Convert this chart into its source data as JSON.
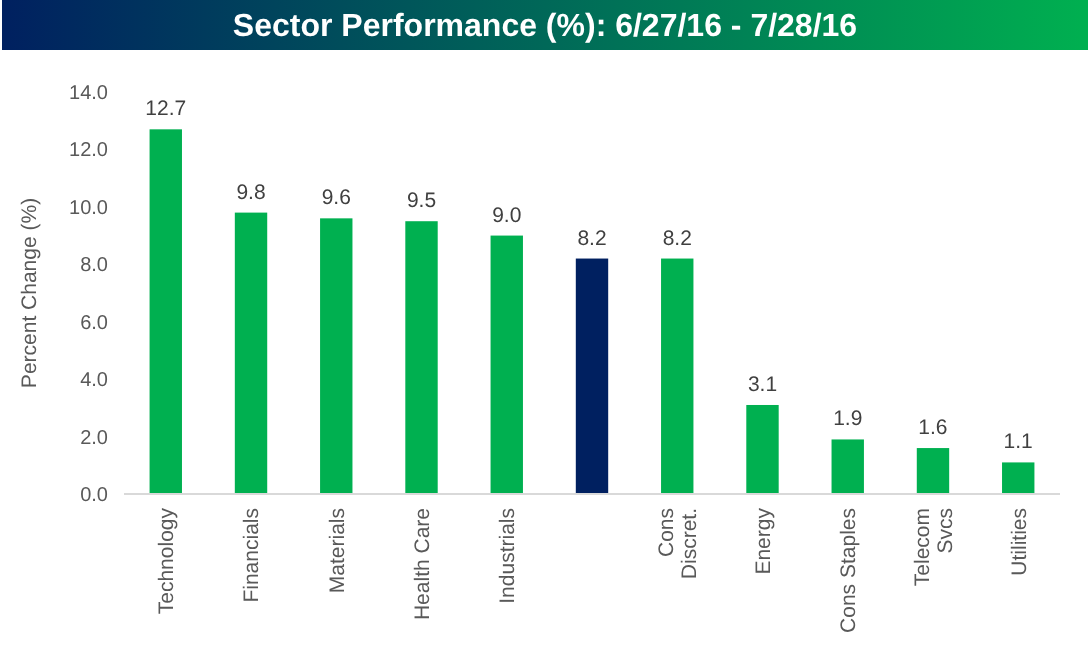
{
  "chart_data": {
    "type": "bar",
    "title": "Sector Performance (%): 6/27/16 - 7/28/16",
    "ylabel": "Percent Change (%)",
    "categories": [
      "Technology",
      "Financials",
      "Materials",
      "Health Care",
      "Industrials",
      null,
      "Cons\nDiscret.",
      "Energy",
      "Cons Staples",
      "Telecom\nSvcs",
      "Utilities"
    ],
    "values": [
      12.7,
      9.8,
      9.6,
      9.5,
      9.0,
      8.2,
      8.2,
      3.1,
      1.9,
      1.6,
      1.1
    ],
    "colors": [
      "#00b050",
      "#00b050",
      "#00b050",
      "#00b050",
      "#00b050",
      "#002060",
      "#00b050",
      "#00b050",
      "#00b050",
      "#00b050",
      "#00b050"
    ],
    "value_labels": [
      "12.7",
      "9.8",
      "9.6",
      "9.5",
      "9.0",
      "8.2",
      "8.2",
      "3.1",
      "1.9",
      "1.6",
      "1.1"
    ],
    "ylim": [
      0,
      14
    ],
    "yticks": [
      {
        "value": 0,
        "label": "0.0"
      },
      {
        "value": 2,
        "label": "2.0"
      },
      {
        "value": 4,
        "label": "4.0"
      },
      {
        "value": 6,
        "label": "6.0"
      },
      {
        "value": 8,
        "label": "8.0"
      },
      {
        "value": 10,
        "label": "10.0"
      },
      {
        "value": 12,
        "label": "12.0"
      },
      {
        "value": 14,
        "label": "14.0"
      }
    ],
    "grid": false
  }
}
